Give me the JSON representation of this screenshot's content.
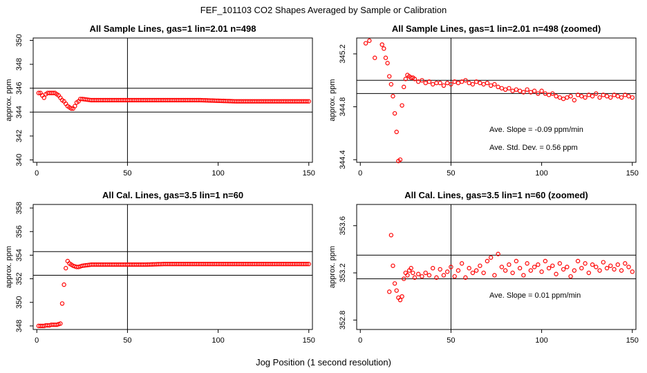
{
  "figure": {
    "title": "FEF_101103  CO2 Shapes Averaged by Sample or Calibration",
    "xlabel": "Jog Position (1 second resolution)"
  },
  "chart_data": [
    {
      "type": "scatter",
      "title": "All Sample Lines, gas=1 lin=2.01 n=498",
      "ylabel": "approx. ppm",
      "xlim": [
        -2,
        152
      ],
      "ylim": [
        339.8,
        350.2
      ],
      "xticks": [
        0,
        50,
        100,
        150
      ],
      "yticks": [
        340,
        342,
        344,
        346,
        348,
        350
      ],
      "vline": 50,
      "hlines": [
        344.0,
        346.0
      ],
      "annotations": [],
      "color": "#ff0000",
      "x": [
        1,
        2,
        3,
        4,
        5,
        6,
        7,
        8,
        9,
        10,
        11,
        12,
        13,
        14,
        15,
        16,
        17,
        18,
        19,
        20,
        21,
        22,
        23,
        24,
        25,
        30,
        40,
        50,
        60,
        70,
        80,
        90,
        100,
        110,
        120,
        130,
        140,
        150
      ],
      "y": [
        345.6,
        345.6,
        345.4,
        345.2,
        345.5,
        345.6,
        345.6,
        345.6,
        345.6,
        345.6,
        345.5,
        345.4,
        345.2,
        345.0,
        344.9,
        344.7,
        344.5,
        344.4,
        344.3,
        344.3,
        344.5,
        344.8,
        344.9,
        345.1,
        345.1,
        345.0,
        345.0,
        345.0,
        345.0,
        345.0,
        345.0,
        345.0,
        344.95,
        344.9,
        344.9,
        344.9,
        344.9,
        344.9
      ],
      "series_style": "dense"
    },
    {
      "type": "scatter",
      "title": "All Sample Lines, gas=1 lin=2.01 n=498 (zoomed)",
      "ylabel": "approx. ppm",
      "xlim": [
        -2,
        152
      ],
      "ylim": [
        344.38,
        345.32
      ],
      "xticks": [
        0,
        50,
        100,
        150
      ],
      "yticks": [
        344.4,
        344.8,
        345.2
      ],
      "vline": 50,
      "hlines": [
        344.9,
        345.0
      ],
      "annotations": [
        "Ave. Slope =  -0.09  ppm/min",
        "Ave. Std. Dev. =  0.56  ppm"
      ],
      "color": "#ff0000",
      "x": [
        3,
        5,
        8,
        12,
        13,
        14,
        15,
        16,
        17,
        18,
        19,
        20,
        21,
        22,
        23,
        24,
        25,
        26,
        27,
        28,
        29,
        30,
        32,
        34,
        36,
        38,
        40,
        42,
        44,
        46,
        48,
        50,
        52,
        54,
        56,
        58,
        60,
        62,
        64,
        66,
        68,
        70,
        72,
        74,
        76,
        78,
        80,
        82,
        84,
        86,
        88,
        90,
        92,
        94,
        96,
        98,
        100,
        102,
        104,
        106,
        108,
        110,
        112,
        114,
        116,
        118,
        120,
        122,
        124,
        126,
        128,
        130,
        132,
        134,
        136,
        138,
        140,
        142,
        144,
        146,
        148,
        150
      ],
      "y": [
        345.28,
        345.3,
        345.17,
        345.27,
        345.24,
        345.17,
        345.13,
        345.03,
        344.97,
        344.88,
        344.75,
        344.61,
        344.39,
        344.4,
        344.81,
        344.95,
        345.01,
        345.04,
        345.03,
        345.02,
        345.02,
        345.01,
        344.99,
        345.0,
        344.98,
        344.99,
        344.97,
        344.98,
        344.98,
        344.96,
        344.98,
        344.97,
        344.99,
        344.98,
        344.99,
        345.0,
        344.98,
        344.97,
        344.99,
        344.98,
        344.97,
        344.98,
        344.96,
        344.97,
        344.95,
        344.94,
        344.93,
        344.94,
        344.92,
        344.93,
        344.92,
        344.91,
        344.93,
        344.91,
        344.92,
        344.9,
        344.92,
        344.9,
        344.89,
        344.9,
        344.88,
        344.87,
        344.86,
        344.87,
        344.88,
        344.85,
        344.89,
        344.88,
        344.87,
        344.89,
        344.88,
        344.9,
        344.87,
        344.89,
        344.88,
        344.87,
        344.89,
        344.88,
        344.87,
        344.89,
        344.88,
        344.87
      ]
    },
    {
      "type": "scatter",
      "title": "All Cal. Lines, gas=3.5 lin=1 n=60",
      "ylabel": "approx. ppm",
      "xlim": [
        -2,
        152
      ],
      "ylim": [
        347.7,
        358.3
      ],
      "xticks": [
        0,
        50,
        100,
        150
      ],
      "yticks": [
        348,
        350,
        352,
        354,
        356,
        358
      ],
      "vline": 50,
      "hlines": [
        352.3,
        354.3
      ],
      "annotations": [],
      "color": "#ff0000",
      "x": [
        1,
        2,
        3,
        4,
        5,
        6,
        7,
        8,
        9,
        10,
        11,
        12,
        13,
        14,
        15,
        16,
        17,
        18,
        19,
        20,
        21,
        22,
        23,
        24,
        25,
        30,
        40,
        50,
        60,
        70,
        80,
        90,
        100,
        110,
        120,
        130,
        140,
        150
      ],
      "y": [
        348.0,
        348.0,
        348.0,
        348.0,
        348.05,
        348.05,
        348.05,
        348.1,
        348.1,
        348.1,
        348.1,
        348.15,
        348.2,
        349.9,
        351.5,
        352.9,
        353.5,
        353.3,
        353.2,
        353.1,
        353.05,
        353.0,
        353.0,
        353.05,
        353.1,
        353.2,
        353.2,
        353.2,
        353.2,
        353.25,
        353.25,
        353.25,
        353.25,
        353.25,
        353.25,
        353.25,
        353.25,
        353.25
      ],
      "series_style": "dense"
    },
    {
      "type": "scatter",
      "title": "All Cal. Lines, gas=3.5 lin=1 n=60 (zoomed)",
      "ylabel": "approx. ppm",
      "xlim": [
        -2,
        152
      ],
      "ylim": [
        352.72,
        353.78
      ],
      "xticks": [
        0,
        50,
        100,
        150
      ],
      "yticks": [
        352.8,
        353.2,
        353.6
      ],
      "vline": 50,
      "hlines": [
        353.15,
        353.35
      ],
      "annotations": [
        "Ave. Slope =  0.01  ppm/min"
      ],
      "color": "#ff0000",
      "x": [
        16,
        17,
        18,
        19,
        20,
        21,
        22,
        23,
        24,
        25,
        26,
        27,
        28,
        29,
        30,
        32,
        34,
        36,
        38,
        40,
        42,
        44,
        46,
        48,
        50,
        52,
        54,
        56,
        58,
        60,
        62,
        64,
        66,
        68,
        70,
        72,
        74,
        76,
        78,
        80,
        82,
        84,
        86,
        88,
        90,
        92,
        94,
        96,
        98,
        100,
        102,
        104,
        106,
        108,
        110,
        112,
        114,
        116,
        118,
        120,
        122,
        124,
        126,
        128,
        130,
        132,
        134,
        136,
        138,
        140,
        142,
        144,
        146,
        148,
        150
      ],
      "y": [
        353.04,
        353.52,
        353.26,
        353.11,
        353.05,
        352.99,
        352.97,
        353.0,
        353.15,
        353.2,
        353.18,
        353.22,
        353.24,
        353.2,
        353.16,
        353.19,
        353.17,
        353.2,
        353.18,
        353.24,
        353.16,
        353.23,
        353.18,
        353.21,
        353.25,
        353.17,
        353.22,
        353.28,
        353.16,
        353.24,
        353.2,
        353.22,
        353.26,
        353.2,
        353.3,
        353.33,
        353.18,
        353.36,
        353.25,
        353.22,
        353.27,
        353.2,
        353.3,
        353.24,
        353.18,
        353.28,
        353.22,
        353.25,
        353.27,
        353.21,
        353.3,
        353.24,
        353.26,
        353.19,
        353.28,
        353.23,
        353.25,
        353.17,
        353.22,
        353.3,
        353.24,
        353.28,
        353.2,
        353.27,
        353.25,
        353.22,
        353.29,
        353.24,
        353.26,
        353.23,
        353.27,
        353.22,
        353.28,
        353.25,
        353.21
      ]
    }
  ]
}
